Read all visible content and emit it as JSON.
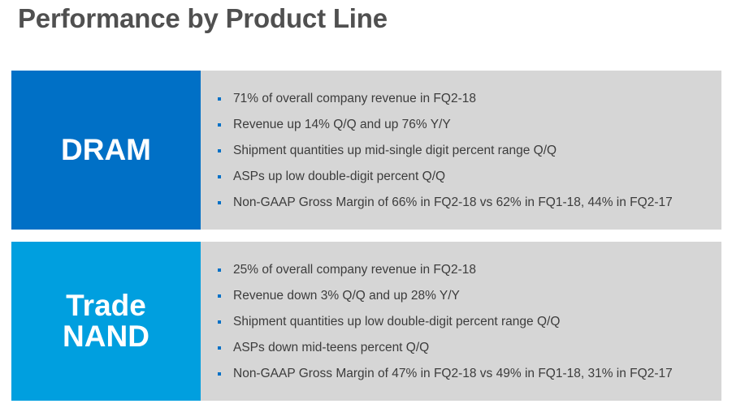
{
  "slide": {
    "title": "Performance by Product Line"
  },
  "colors": {
    "dram_accent": "#0070c6",
    "nand_accent": "#009fdf",
    "panel_bg": "#d6d6d6",
    "title_text": "#505050"
  },
  "sections": [
    {
      "label": "DRAM",
      "bullets": [
        "71% of overall company revenue in FQ2-18",
        "Revenue up 14% Q/Q and up 76% Y/Y",
        "Shipment quantities up mid-single digit percent range Q/Q",
        "ASPs up low double-digit percent Q/Q",
        "Non-GAAP Gross Margin of 66% in FQ2-18 vs 62% in FQ1-18, 44% in FQ2-17"
      ]
    },
    {
      "label_line1": "Trade",
      "label_line2": "NAND",
      "bullets": [
        "25% of overall company revenue in FQ2-18",
        "Revenue down 3% Q/Q and up 28% Y/Y",
        "Shipment quantities up low double-digit percent range Q/Q",
        "ASPs down mid-teens percent Q/Q",
        "Non-GAAP Gross Margin of 47% in FQ2-18 vs 49% in FQ1-18, 31% in FQ2-17"
      ]
    }
  ]
}
